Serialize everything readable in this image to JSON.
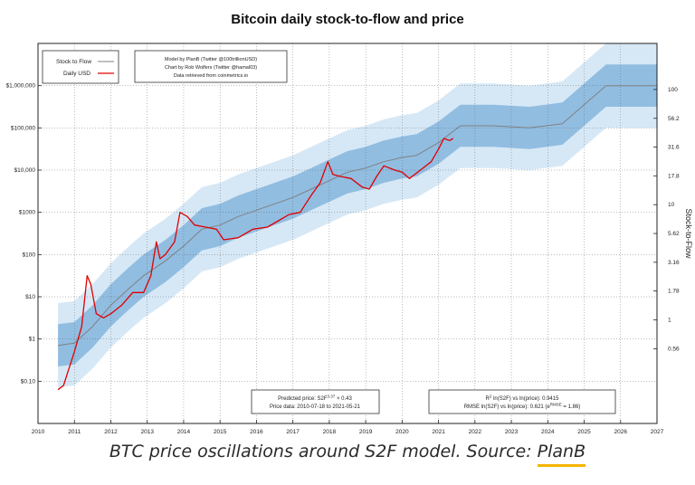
{
  "chart_data": {
    "type": "line",
    "title": "Bitcoin daily stock-to-flow and price",
    "xlabel": "",
    "ylabel": "",
    "y2label": "Stock-to-Flow",
    "xlim": [
      2010,
      2027
    ],
    "ylim_log": [
      -2,
      7
    ],
    "y2lim_log": [
      -0.9,
      2.4
    ],
    "grid": true,
    "x_ticks": [
      "2010",
      "2011",
      "2012",
      "2013",
      "2014",
      "2015",
      "2016",
      "2017",
      "2018",
      "2019",
      "2020",
      "2021",
      "2022",
      "2023",
      "2024",
      "2025",
      "2026",
      "2027"
    ],
    "y_ticks": [
      {
        "label": "$0.10",
        "log": -1
      },
      {
        "label": "$1",
        "log": 0
      },
      {
        "label": "$10",
        "log": 1
      },
      {
        "label": "$100",
        "log": 2
      },
      {
        "label": "$1000",
        "log": 3
      },
      {
        "label": "$10,000",
        "log": 4
      },
      {
        "label": "$100,000",
        "log": 5
      },
      {
        "label": "$1,000,000",
        "log": 6
      }
    ],
    "y2_ticks": [
      {
        "label": "0.56",
        "value": 0.56
      },
      {
        "label": "1",
        "value": 1
      },
      {
        "label": "1.78",
        "value": 1.78
      },
      {
        "label": "3.16",
        "value": 3.16
      },
      {
        "label": "5.62",
        "value": 5.62
      },
      {
        "label": "10",
        "value": 10
      },
      {
        "label": "17.8",
        "value": 17.8
      },
      {
        "label": "31.6",
        "value": 31.6
      },
      {
        "label": "56.2",
        "value": 56.2
      },
      {
        "label": "100",
        "value": 100
      }
    ],
    "series": [
      {
        "name": "Stock to Flow",
        "color": "#808080",
        "x": [
          2010.55,
          2011.0,
          2011.5,
          2012.0,
          2012.5,
          2012.9,
          2013.5,
          2014.0,
          2014.5,
          2015.0,
          2015.5,
          2016.0,
          2016.5,
          2017.0,
          2017.5,
          2018.0,
          2018.5,
          2019.0,
          2019.5,
          2020.0,
          2020.4,
          2021.0,
          2021.6,
          2022.5,
          2023.5,
          2024.4,
          2025.6,
          2027.0
        ],
        "y": [
          -0.15,
          -0.1,
          0.3,
          0.8,
          1.2,
          1.5,
          1.85,
          2.2,
          2.6,
          2.7,
          2.9,
          3.05,
          3.2,
          3.35,
          3.55,
          3.75,
          3.95,
          4.05,
          4.2,
          4.3,
          4.35,
          4.65,
          5.05,
          5.05,
          5.0,
          5.1,
          6.0,
          6.0
        ]
      },
      {
        "name": "Daily USD",
        "color": "#e00000",
        "x": [
          2010.55,
          2010.7,
          2010.85,
          2011.0,
          2011.2,
          2011.35,
          2011.45,
          2011.6,
          2011.8,
          2012.0,
          2012.3,
          2012.6,
          2012.9,
          2013.1,
          2013.25,
          2013.35,
          2013.5,
          2013.75,
          2013.9,
          2014.1,
          2014.3,
          2014.6,
          2014.9,
          2015.1,
          2015.5,
          2015.9,
          2016.3,
          2016.6,
          2016.9,
          2017.2,
          2017.5,
          2017.75,
          2017.96,
          2018.1,
          2018.3,
          2018.6,
          2018.9,
          2019.1,
          2019.3,
          2019.5,
          2019.8,
          2020.0,
          2020.2,
          2020.5,
          2020.8,
          2021.0,
          2021.15,
          2021.3,
          2021.4
        ],
        "y": [
          -1.2,
          -1.1,
          -0.7,
          -0.3,
          0.3,
          1.5,
          1.3,
          0.6,
          0.5,
          0.6,
          0.8,
          1.1,
          1.1,
          1.5,
          2.3,
          1.9,
          2.0,
          2.3,
          3.0,
          2.9,
          2.7,
          2.65,
          2.6,
          2.35,
          2.4,
          2.6,
          2.65,
          2.8,
          2.95,
          3.0,
          3.4,
          3.7,
          4.2,
          3.9,
          3.85,
          3.8,
          3.6,
          3.55,
          3.85,
          4.1,
          4.0,
          3.95,
          3.8,
          4.0,
          4.2,
          4.5,
          4.75,
          4.7,
          4.75
        ]
      }
    ],
    "bands": [
      {
        "name": "inner",
        "color": "#7fb2dc",
        "half_width_log": 0.5
      },
      {
        "name": "outer",
        "color": "#cfe4f5",
        "half_width_log": 1.0
      }
    ],
    "legend": {
      "placement": "top-left",
      "items": [
        "Stock to Flow",
        "Daily USD"
      ]
    },
    "info_box": {
      "lines": [
        "Model by PlanB (Twitter @100trillionUSD)",
        "Chart by Rob Wolfers (Twitter @hamal03)",
        "Data retrieved from coinmetrics.io"
      ]
    },
    "annotation_left": {
      "line1_prefix": "Predicted price: S2F",
      "line1_exp": "3.37",
      "line1_suffix": " × 0.43",
      "line2": "Price data: 2010-07-18 to 2021-05-21"
    },
    "annotation_right": {
      "line1_prefix": "R",
      "line1_exp": "2",
      "line1_suffix": " ln(S2F) vs ln(price): 0.9415",
      "line2_prefix": "RMSE ln(S2F) vs ln(price): 0.621 (e",
      "line2_exp": "RMSE",
      "line2_suffix": " = 1.86)"
    }
  },
  "caption": {
    "text": "BTC price oscillations around S2F model. Source: ",
    "link": "PlanB"
  }
}
